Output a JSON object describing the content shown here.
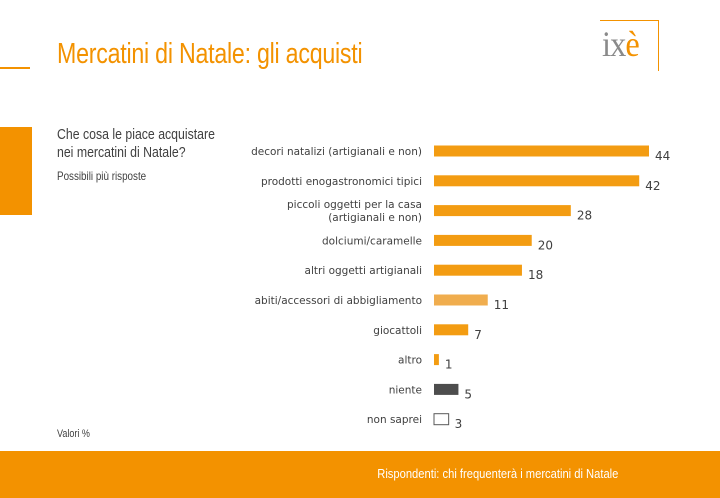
{
  "header": {
    "title": "Mercatini di Natale: gli acquisti",
    "logo": "ixè"
  },
  "question": {
    "text": "Che cosa le piace acquistare nei mercatini di Natale?",
    "note": "Possibili più risposte"
  },
  "units_note": "Valori %",
  "footer": {
    "text": "Rispondenti: chi frequenterà i mercatini di Natale"
  },
  "colors": {
    "accent": "#f39200",
    "bar_default": "#f39c12",
    "bar_light": "#f0ad4e",
    "bar_dark": "#4d4d4d",
    "bar_outline": "#595959"
  },
  "chart_data": {
    "type": "bar",
    "orientation": "horizontal",
    "categories": [
      "decori natalizi (artigianali e non)",
      "prodotti enogastronomici tipici",
      "piccoli oggetti per la casa\n(artigianali e non)",
      "dolciumi/caramelle",
      "altri oggetti artigianali",
      "abiti/accessori di abbigliamento",
      "giocattoli",
      "altro",
      "niente",
      "non saprei"
    ],
    "values": [
      44,
      42,
      28,
      20,
      18,
      11,
      7,
      1,
      5,
      3
    ],
    "styles": [
      "default",
      "default",
      "default",
      "default",
      "default",
      "light",
      "default",
      "default",
      "dark",
      "outline"
    ],
    "xlim": [
      0,
      44
    ],
    "grid": false,
    "legend": "none"
  }
}
